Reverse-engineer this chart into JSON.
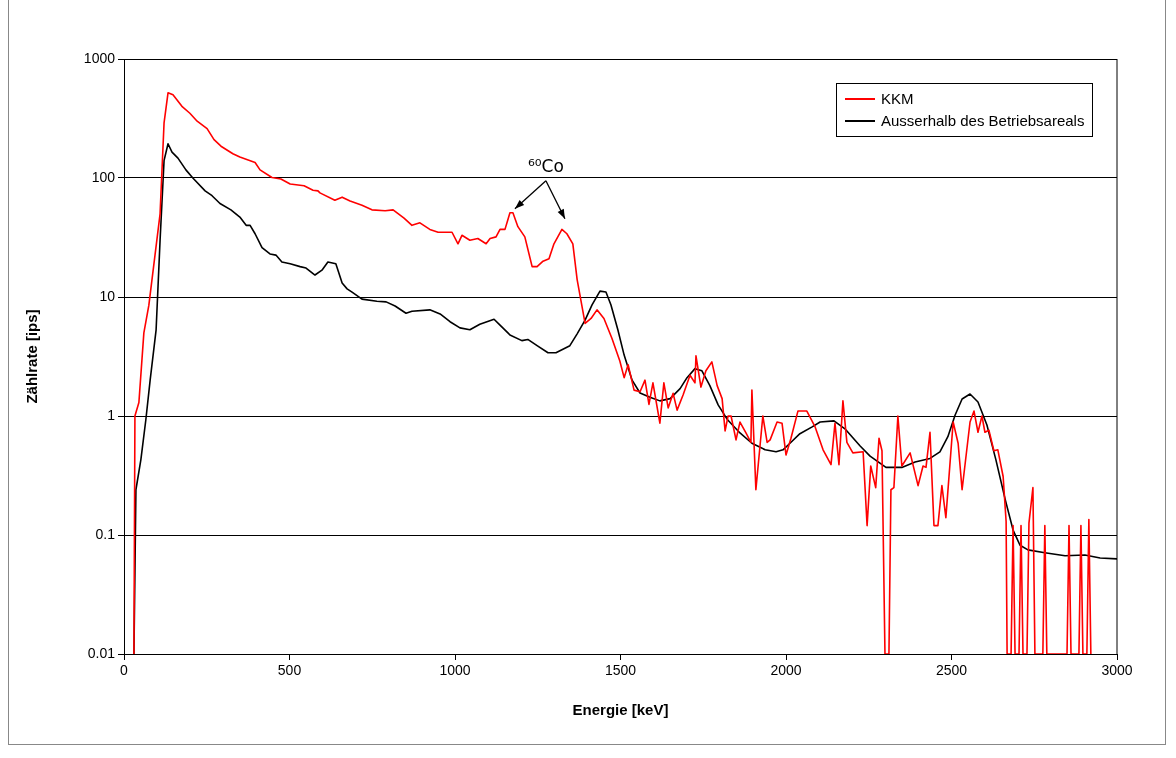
{
  "chart_data": {
    "type": "line",
    "xlabel": "Energie [keV]",
    "ylabel": "Zählrate [ips]",
    "log": "y",
    "xlim": [
      0,
      3000
    ],
    "xticks": [
      0,
      500,
      1000,
      1500,
      2000,
      2500,
      3000
    ],
    "ylim": [
      0.01,
      1000
    ],
    "yticks": [
      0.01,
      0.1,
      1,
      10,
      100,
      1000
    ],
    "grid": "y",
    "legend": "top right",
    "marker": "none",
    "line_style": "solid",
    "annotations": [
      {
        "text": "⁶⁰Co",
        "x": 1175,
        "y": 51
      }
    ],
    "series": [
      {
        "name": "KKM",
        "color": "#ff0000",
        "x": [
          30,
          33,
          45,
          60,
          75,
          109,
          121,
          133,
          148,
          175,
          199,
          221,
          251,
          272,
          293,
          329,
          350,
          396,
          411,
          447,
          474,
          502,
          544,
          571,
          586,
          592,
          637,
          659,
          683,
          719,
          749,
          789,
          813,
          846,
          870,
          894,
          924,
          949,
          991,
          1009,
          1021,
          1045,
          1069,
          1094,
          1106,
          1124,
          1136,
          1151,
          1166,
          1175,
          1190,
          1211,
          1233,
          1248,
          1266,
          1284,
          1299,
          1323,
          1338,
          1356,
          1369,
          1393,
          1411,
          1429,
          1450,
          1474,
          1498,
          1511,
          1523,
          1541,
          1559,
          1574,
          1586,
          1598,
          1619,
          1631,
          1644,
          1659,
          1671,
          1689,
          1710,
          1725,
          1728,
          1743,
          1758,
          1776,
          1792,
          1807,
          1816,
          1825,
          1834,
          1849,
          1861,
          1879,
          1894,
          1897,
          1909,
          1930,
          1943,
          1952,
          1973,
          1988,
          2000,
          2015,
          2036,
          2063,
          2088,
          2112,
          2136,
          2148,
          2160,
          2172,
          2184,
          2202,
          2233,
          2245,
          2256,
          2271,
          2281,
          2290,
          2299,
          2311,
          2317,
          2326,
          2338,
          2350,
          2375,
          2399,
          2414,
          2423,
          2435,
          2447,
          2459,
          2471,
          2483,
          2505,
          2520,
          2532,
          2556,
          2568,
          2580,
          2592,
          2601,
          2613,
          2628,
          2640,
          2656,
          2665,
          2668,
          2680,
          2686,
          2692,
          2704,
          2710,
          2716,
          2728,
          2734,
          2746,
          2752,
          2776,
          2782,
          2788,
          2849,
          2855,
          2861,
          2885,
          2891,
          2897,
          2909,
          2915,
          2921
        ],
        "values": [
          0.01,
          1,
          1.3,
          5,
          8.5,
          50,
          290,
          520,
          500,
          400,
          350,
          300,
          260,
          210,
          185,
          160,
          150,
          135,
          117,
          101,
          98,
          89,
          86,
          79,
          78,
          75,
          65,
          69,
          64,
          59,
          54,
          53,
          54,
          46,
          40,
          42,
          37,
          35,
          35,
          28,
          33,
          30,
          31,
          28,
          31,
          32,
          37,
          37,
          51,
          51,
          39,
          32,
          18,
          18,
          20,
          21,
          28,
          37,
          34,
          28,
          14,
          6,
          6.6,
          7.8,
          6.6,
          4.5,
          2.9,
          2.1,
          2.7,
          1.65,
          1.6,
          2,
          1.25,
          1.9,
          0.87,
          1.9,
          1.17,
          1.55,
          1.12,
          1.5,
          2.2,
          1.9,
          3.2,
          1.75,
          2.4,
          2.85,
          1.8,
          1.4,
          0.75,
          1,
          1,
          0.63,
          0.89,
          0.72,
          0.6,
          1.65,
          0.24,
          1,
          0.6,
          0.63,
          0.89,
          0.87,
          0.47,
          0.65,
          1.1,
          1.1,
          0.81,
          0.52,
          0.39,
          0.87,
          0.39,
          1.34,
          0.6,
          0.49,
          0.5,
          0.12,
          0.38,
          0.25,
          0.65,
          0.51,
          0.01,
          0.01,
          0.24,
          0.25,
          1,
          0.38,
          0.49,
          0.26,
          0.38,
          0.37,
          0.73,
          0.12,
          0.12,
          0.26,
          0.14,
          0.89,
          0.59,
          0.24,
          0.89,
          1.1,
          0.73,
          1,
          0.73,
          0.76,
          0.51,
          0.52,
          0.31,
          0.13,
          0.01,
          0.01,
          0.12,
          0.01,
          0.01,
          0.12,
          0.01,
          0.01,
          0.126,
          0.25,
          0.01,
          0.01,
          0.12,
          0.01,
          0.01,
          0.12,
          0.01,
          0.01,
          0.12,
          0.01,
          0.01,
          0.135,
          0.01
        ]
      },
      {
        "name": "Ausserhalb des Betriebsareals",
        "color": "#000000",
        "x": [
          30,
          36,
          51,
          66,
          79,
          97,
          109,
          121,
          133,
          145,
          163,
          187,
          208,
          245,
          266,
          290,
          323,
          350,
          369,
          381,
          396,
          417,
          441,
          459,
          477,
          502,
          532,
          550,
          577,
          598,
          616,
          640,
          659,
          674,
          689,
          719,
          764,
          792,
          819,
          852,
          870,
          924,
          955,
          985,
          1015,
          1045,
          1075,
          1118,
          1136,
          1166,
          1202,
          1220,
          1248,
          1281,
          1305,
          1347,
          1369,
          1393,
          1414,
          1438,
          1456,
          1471,
          1492,
          1511,
          1535,
          1559,
          1589,
          1619,
          1650,
          1680,
          1701,
          1725,
          1746,
          1770,
          1795,
          1822,
          1861,
          1897,
          1937,
          1970,
          1991,
          2012,
          2042,
          2079,
          2103,
          2145,
          2178,
          2224,
          2254,
          2302,
          2350,
          2390,
          2435,
          2465,
          2489,
          2511,
          2532,
          2556,
          2580,
          2607,
          2634,
          2662,
          2686,
          2707,
          2731,
          2782,
          2843,
          2903,
          2949,
          3000
        ],
        "values": [
          0.01,
          0.24,
          0.43,
          0.93,
          2,
          5.3,
          30,
          140,
          194,
          165,
          147,
          117,
          100,
          78,
          71,
          61,
          54,
          47,
          40,
          40,
          34,
          26,
          23,
          22.5,
          19.7,
          19,
          18,
          17.5,
          15.3,
          16.8,
          19.7,
          19,
          13.1,
          11.7,
          11,
          9.6,
          9.2,
          9.1,
          8.4,
          7.3,
          7.6,
          7.8,
          7.2,
          6.2,
          5.5,
          5.3,
          5.9,
          6.5,
          5.8,
          4.8,
          4.3,
          4.4,
          3.9,
          3.4,
          3.4,
          3.9,
          4.9,
          6.4,
          8.6,
          11.2,
          11,
          8.6,
          5.3,
          3.25,
          2,
          1.56,
          1.44,
          1.34,
          1.4,
          1.7,
          2.1,
          2.5,
          2.4,
          1.8,
          1.24,
          0.94,
          0.72,
          0.59,
          0.52,
          0.5,
          0.52,
          0.59,
          0.71,
          0.81,
          0.89,
          0.91,
          0.78,
          0.56,
          0.46,
          0.37,
          0.37,
          0.41,
          0.44,
          0.5,
          0.67,
          1.02,
          1.39,
          1.53,
          1.31,
          0.84,
          0.43,
          0.2,
          0.11,
          0.082,
          0.075,
          0.071,
          0.067,
          0.068,
          0.064,
          0.063
        ]
      }
    ]
  }
}
